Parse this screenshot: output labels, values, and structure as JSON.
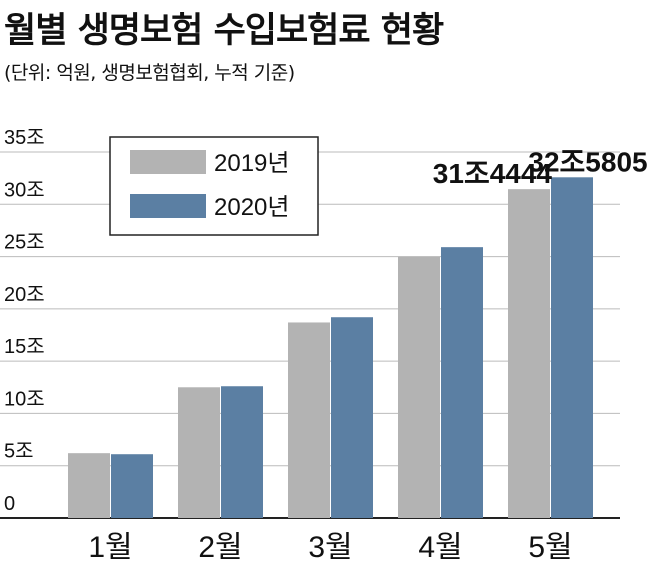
{
  "header": {
    "title": "월별 생명보험 수입보험료 현황",
    "subtitle": "(단위: 억원, 생명보험협회, 누적 기준)"
  },
  "chart_data": {
    "type": "bar",
    "categories": [
      "1월",
      "2월",
      "3월",
      "4월",
      "5월"
    ],
    "series": [
      {
        "name": "2019년",
        "color": "#b3b3b3",
        "values": [
          62000,
          125000,
          187000,
          250000,
          314444
        ]
      },
      {
        "name": "2020년",
        "color": "#5b7fa3",
        "values": [
          61000,
          126000,
          192000,
          259000,
          325805
        ]
      }
    ],
    "y_ticks": [
      "0",
      "5조",
      "10조",
      "15조",
      "20조",
      "25조",
      "30조",
      "35조"
    ],
    "ylim": [
      0,
      350000
    ],
    "data_labels": [
      {
        "series": 0,
        "index": 4,
        "text": "31조4444"
      },
      {
        "series": 1,
        "index": 4,
        "text": "32조5805"
      }
    ],
    "grid": true,
    "legend": "top-left",
    "colors": {
      "gridline": "#bbbbbb",
      "axis": "#222222",
      "legend_border": "#222222"
    }
  }
}
